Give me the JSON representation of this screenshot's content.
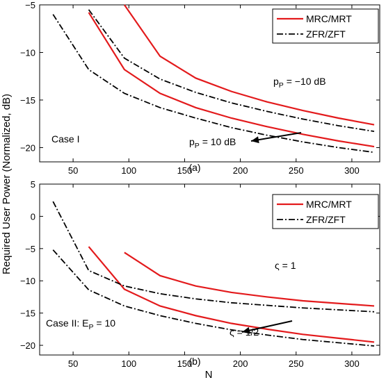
{
  "figure": {
    "ylabel": "Required User Power (Normalized, dB)",
    "xlabel": "N"
  },
  "chart_data": [
    {
      "type": "line",
      "panel_label": "(a)",
      "case_label": "Case I",
      "xlim": [
        20,
        325
      ],
      "ylim": [
        -21.5,
        -5
      ],
      "xticks": [
        50,
        100,
        150,
        200,
        250,
        300
      ],
      "yticks": [
        -5,
        -10,
        -15,
        -20
      ],
      "legend": {
        "placement": "top-right",
        "entries": [
          {
            "label": "MRC/MRT",
            "color": "#e31a1c",
            "dash": "solid"
          },
          {
            "label": "ZFR/ZFT",
            "color": "#000000",
            "dash": "dashdot"
          }
        ]
      },
      "annotations": [
        {
          "text": "p",
          "sub": "P",
          "rest": " = −10 dB"
        },
        {
          "text": "p",
          "sub": "P",
          "rest": " = 10 dB"
        }
      ],
      "series": [
        {
          "style": "MRC/MRT",
          "x": [
            96,
            128,
            160,
            192,
            224,
            256,
            288,
            320
          ],
          "y": [
            -5.0,
            -10.4,
            -12.7,
            -14.1,
            -15.2,
            -16.1,
            -16.9,
            -17.6
          ]
        },
        {
          "style": "MRC/MRT",
          "x": [
            64,
            96,
            128,
            160,
            192,
            224,
            256,
            288,
            320
          ],
          "y": [
            -5.8,
            -11.8,
            -14.3,
            -15.8,
            -16.9,
            -17.8,
            -18.6,
            -19.3,
            -19.9
          ]
        },
        {
          "style": "ZFR/ZFT",
          "x": [
            64,
            96,
            128,
            160,
            192,
            224,
            256,
            288,
            320
          ],
          "y": [
            -5.5,
            -10.6,
            -12.8,
            -14.2,
            -15.3,
            -16.2,
            -17.0,
            -17.7,
            -18.3
          ]
        },
        {
          "style": "ZFR/ZFT",
          "x": [
            32,
            64,
            96,
            128,
            160,
            192,
            224,
            256,
            288,
            320
          ],
          "y": [
            -6.0,
            -11.8,
            -14.3,
            -15.8,
            -16.9,
            -17.9,
            -18.7,
            -19.4,
            -20.0,
            -20.5
          ]
        }
      ]
    },
    {
      "type": "line",
      "panel_label": "(b)",
      "case_label": "Case II: E",
      "case_sub": "P",
      "case_rest": " = 10",
      "xlim": [
        20,
        325
      ],
      "ylim": [
        -21.5,
        5
      ],
      "xticks": [
        50,
        100,
        150,
        200,
        250,
        300
      ],
      "yticks": [
        5,
        0,
        -5,
        -10,
        -15,
        -20
      ],
      "legend": {
        "placement": "top-right",
        "entries": [
          {
            "label": "MRC/MRT",
            "color": "#e31a1c",
            "dash": "solid"
          },
          {
            "label": "ZFR/ZFT",
            "color": "#000000",
            "dash": "dashdot"
          }
        ]
      },
      "annotations": [
        {
          "text": "ς = 1",
          "sub": "",
          "rest": ""
        },
        {
          "text": "ς = 1/2",
          "sub": "",
          "rest": ""
        }
      ],
      "series": [
        {
          "style": "MRC/MRT",
          "x": [
            96,
            128,
            160,
            192,
            224,
            256,
            288,
            320
          ],
          "y": [
            -5.6,
            -9.2,
            -10.8,
            -11.8,
            -12.5,
            -13.1,
            -13.5,
            -13.9
          ]
        },
        {
          "style": "MRC/MRT",
          "x": [
            64,
            96,
            128,
            160,
            192,
            224,
            256,
            288,
            320
          ],
          "y": [
            -4.7,
            -11.3,
            -13.9,
            -15.4,
            -16.6,
            -17.5,
            -18.3,
            -18.9,
            -19.5
          ]
        },
        {
          "style": "ZFR/ZFT",
          "x": [
            32,
            64,
            96,
            128,
            160,
            192,
            224,
            256,
            288,
            320
          ],
          "y": [
            2.3,
            -8.4,
            -10.8,
            -12.0,
            -12.8,
            -13.4,
            -13.8,
            -14.2,
            -14.5,
            -14.8
          ]
        },
        {
          "style": "ZFR/ZFT",
          "x": [
            32,
            64,
            96,
            128,
            160,
            192,
            224,
            256,
            288,
            320
          ],
          "y": [
            -5.2,
            -11.4,
            -13.9,
            -15.4,
            -16.6,
            -17.6,
            -18.4,
            -19.1,
            -19.6,
            -20.1
          ]
        }
      ]
    }
  ]
}
